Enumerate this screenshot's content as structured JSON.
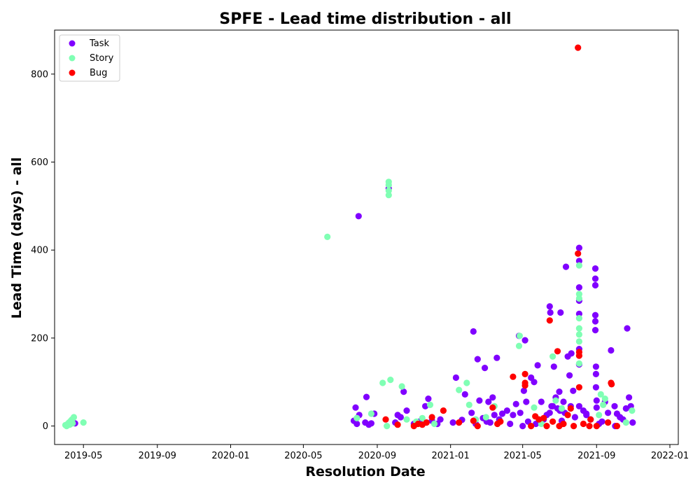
{
  "chart_data": {
    "type": "scatter",
    "title": "SPFE - Lead time distribution - all",
    "xlabel": "Resolution Date",
    "ylabel": "Lead Time (days) - all",
    "xlim": [
      "2019-03-14",
      "2022-01-15"
    ],
    "ylim": [
      -42,
      900
    ],
    "x_ticks": [
      "2019-05-01",
      "2019-09-01",
      "2020-01-01",
      "2020-05-01",
      "2020-09-01",
      "2021-01-01",
      "2021-05-01",
      "2021-09-01",
      "2022-01-01"
    ],
    "x_tick_labels": [
      "2019-05",
      "2019-09",
      "2020-01",
      "2020-05",
      "2020-09",
      "2021-01",
      "2021-05",
      "2021-09",
      "2022-01"
    ],
    "y_ticks": [
      0,
      200,
      400,
      600,
      800
    ],
    "y_tick_labels": [
      "0",
      "200",
      "400",
      "600",
      "800"
    ],
    "grid": false,
    "legend_position": "top-left",
    "series": [
      {
        "name": "Task",
        "color": "#8000ff",
        "points": [
          [
            "2019-04-17",
            6
          ],
          [
            "2020-07-24",
            12
          ],
          [
            "2020-07-27",
            42
          ],
          [
            "2020-07-29",
            5
          ],
          [
            "2020-08-02",
            25
          ],
          [
            "2020-08-12",
            8
          ],
          [
            "2020-08-14",
            66
          ],
          [
            "2020-08-18",
            3
          ],
          [
            "2020-08-22",
            6
          ],
          [
            "2020-08-27",
            28
          ],
          [
            "2020-09-20",
            540
          ],
          [
            "2020-08-01",
            477
          ],
          [
            "2020-10-01",
            8
          ],
          [
            "2020-10-05",
            25
          ],
          [
            "2020-10-10",
            20
          ],
          [
            "2020-10-15",
            78
          ],
          [
            "2020-10-20",
            35
          ],
          [
            "2020-11-01",
            5
          ],
          [
            "2020-11-10",
            10
          ],
          [
            "2020-11-20",
            45
          ],
          [
            "2020-11-25",
            62
          ],
          [
            "2020-12-01",
            12
          ],
          [
            "2020-12-10",
            5
          ],
          [
            "2020-12-15",
            15
          ],
          [
            "2021-01-05",
            8
          ],
          [
            "2021-01-10",
            110
          ],
          [
            "2021-01-20",
            14
          ],
          [
            "2021-01-25",
            72
          ],
          [
            "2021-02-05",
            30
          ],
          [
            "2021-02-08",
            215
          ],
          [
            "2021-02-12",
            5
          ],
          [
            "2021-02-15",
            152
          ],
          [
            "2021-02-18",
            58
          ],
          [
            "2021-02-24",
            18
          ],
          [
            "2021-02-27",
            132
          ],
          [
            "2021-03-02",
            10
          ],
          [
            "2021-03-05",
            55
          ],
          [
            "2021-03-08",
            8
          ],
          [
            "2021-03-12",
            65
          ],
          [
            "2021-03-15",
            25
          ],
          [
            "2021-03-19",
            155
          ],
          [
            "2021-03-23",
            15
          ],
          [
            "2021-03-28",
            28
          ],
          [
            "2021-04-05",
            35
          ],
          [
            "2021-04-10",
            5
          ],
          [
            "2021-04-15",
            25
          ],
          [
            "2021-04-20",
            50
          ],
          [
            "2021-04-25",
            205
          ],
          [
            "2021-04-27",
            30
          ],
          [
            "2021-05-01",
            0
          ],
          [
            "2021-05-03",
            80
          ],
          [
            "2021-05-05",
            195
          ],
          [
            "2021-05-07",
            55
          ],
          [
            "2021-05-10",
            10
          ],
          [
            "2021-05-15",
            110
          ],
          [
            "2021-05-20",
            100
          ],
          [
            "2021-05-23",
            5
          ],
          [
            "2021-05-26",
            138
          ],
          [
            "2021-06-01",
            55
          ],
          [
            "2021-06-05",
            15
          ],
          [
            "2021-06-10",
            25
          ],
          [
            "2021-06-15",
            272
          ],
          [
            "2021-06-16",
            258
          ],
          [
            "2021-06-18",
            45
          ],
          [
            "2021-06-22",
            135
          ],
          [
            "2021-06-25",
            65
          ],
          [
            "2021-06-28",
            40
          ],
          [
            "2021-07-01",
            78
          ],
          [
            "2021-07-03",
            258
          ],
          [
            "2021-07-05",
            12
          ],
          [
            "2021-07-08",
            55
          ],
          [
            "2021-07-12",
            362
          ],
          [
            "2021-07-15",
            158
          ],
          [
            "2021-07-18",
            115
          ],
          [
            "2021-07-21",
            165
          ],
          [
            "2021-07-24",
            80
          ],
          [
            "2021-07-27",
            20
          ],
          [
            "2021-08-03",
            405
          ],
          [
            "2021-08-03",
            375
          ],
          [
            "2021-08-03",
            315
          ],
          [
            "2021-08-03",
            285
          ],
          [
            "2021-08-03",
            255
          ],
          [
            "2021-08-03",
            175
          ],
          [
            "2021-08-03",
            140
          ],
          [
            "2021-08-03",
            45
          ],
          [
            "2021-08-10",
            35
          ],
          [
            "2021-08-15",
            28
          ],
          [
            "2021-08-22",
            15
          ],
          [
            "2021-08-30",
            358
          ],
          [
            "2021-08-30",
            335
          ],
          [
            "2021-08-30",
            320
          ],
          [
            "2021-08-30",
            252
          ],
          [
            "2021-08-30",
            238
          ],
          [
            "2021-08-30",
            218
          ],
          [
            "2021-08-31",
            135
          ],
          [
            "2021-08-31",
            118
          ],
          [
            "2021-08-31",
            88
          ],
          [
            "2021-09-01",
            58
          ],
          [
            "2021-09-01",
            42
          ],
          [
            "2021-09-10",
            10
          ],
          [
            "2021-09-15",
            55
          ],
          [
            "2021-09-20",
            30
          ],
          [
            "2021-09-25",
            172
          ],
          [
            "2021-10-01",
            45
          ],
          [
            "2021-10-05",
            28
          ],
          [
            "2021-10-10",
            20
          ],
          [
            "2021-10-15",
            15
          ],
          [
            "2021-10-20",
            40
          ],
          [
            "2021-10-22",
            222
          ],
          [
            "2021-10-25",
            65
          ],
          [
            "2021-10-28",
            45
          ],
          [
            "2021-10-31",
            8
          ],
          [
            "2021-06-15",
            30
          ],
          [
            "2021-06-20",
            45
          ],
          [
            "2021-07-02",
            35
          ],
          [
            "2021-07-10",
            30
          ],
          [
            "2021-07-20",
            45
          ],
          [
            "2021-08-15",
            25
          ],
          [
            "2021-09-05",
            5
          ],
          [
            "2021-10-02",
            0
          ]
        ]
      },
      {
        "name": "Story",
        "color": "#80ffb4",
        "points": [
          [
            "2019-04-01",
            2
          ],
          [
            "2019-04-03",
            0
          ],
          [
            "2019-04-05",
            5
          ],
          [
            "2019-04-07",
            8
          ],
          [
            "2019-04-08",
            3
          ],
          [
            "2019-04-10",
            12
          ],
          [
            "2019-04-12",
            15
          ],
          [
            "2019-04-13",
            6
          ],
          [
            "2019-04-15",
            20
          ],
          [
            "2019-05-01",
            8
          ],
          [
            "2020-06-10",
            430
          ],
          [
            "2020-07-29",
            18
          ],
          [
            "2020-08-22",
            28
          ],
          [
            "2020-09-10",
            98
          ],
          [
            "2020-09-17",
            0
          ],
          [
            "2020-09-20",
            555
          ],
          [
            "2020-09-20",
            548
          ],
          [
            "2020-09-20",
            535
          ],
          [
            "2020-09-20",
            525
          ],
          [
            "2020-09-23",
            105
          ],
          [
            "2020-10-12",
            90
          ],
          [
            "2020-10-20",
            15
          ],
          [
            "2020-11-05",
            10
          ],
          [
            "2020-11-15",
            18
          ],
          [
            "2020-11-28",
            48
          ],
          [
            "2020-12-05",
            5
          ],
          [
            "2021-01-15",
            82
          ],
          [
            "2021-01-28",
            98
          ],
          [
            "2021-02-01",
            48
          ],
          [
            "2021-02-12",
            15
          ],
          [
            "2021-03-01",
            20
          ],
          [
            "2021-03-15",
            45
          ],
          [
            "2021-04-25",
            182
          ],
          [
            "2021-04-26",
            205
          ],
          [
            "2021-05-20",
            42
          ],
          [
            "2021-06-01",
            5
          ],
          [
            "2021-06-20",
            158
          ],
          [
            "2021-06-25",
            58
          ],
          [
            "2021-07-05",
            40
          ],
          [
            "2021-08-03",
            365
          ],
          [
            "2021-08-03",
            300
          ],
          [
            "2021-08-03",
            290
          ],
          [
            "2021-08-03",
            245
          ],
          [
            "2021-08-03",
            222
          ],
          [
            "2021-08-03",
            208
          ],
          [
            "2021-08-03",
            192
          ],
          [
            "2021-08-03",
            142
          ],
          [
            "2021-09-05",
            25
          ],
          [
            "2021-09-08",
            72
          ],
          [
            "2021-09-12",
            48
          ],
          [
            "2021-09-15",
            62
          ],
          [
            "2021-10-20",
            8
          ],
          [
            "2021-10-30",
            35
          ]
        ]
      },
      {
        "name": "Bug",
        "color": "#ff0000",
        "points": [
          [
            "2020-09-15",
            15
          ],
          [
            "2020-10-05",
            3
          ],
          [
            "2020-11-01",
            0
          ],
          [
            "2020-11-08",
            5
          ],
          [
            "2020-11-15",
            3
          ],
          [
            "2020-11-22",
            8
          ],
          [
            "2020-12-01",
            20
          ],
          [
            "2020-12-20",
            35
          ],
          [
            "2021-01-15",
            8
          ],
          [
            "2021-02-08",
            12
          ],
          [
            "2021-02-15",
            0
          ],
          [
            "2021-03-12",
            42
          ],
          [
            "2021-03-20",
            5
          ],
          [
            "2021-03-25",
            10
          ],
          [
            "2021-04-15",
            112
          ],
          [
            "2021-05-05",
            118
          ],
          [
            "2021-05-05",
            98
          ],
          [
            "2021-05-05",
            92
          ],
          [
            "2021-05-15",
            0
          ],
          [
            "2021-05-22",
            22
          ],
          [
            "2021-05-28",
            15
          ],
          [
            "2021-06-05",
            18
          ],
          [
            "2021-06-15",
            240
          ],
          [
            "2021-06-28",
            170
          ],
          [
            "2021-07-01",
            0
          ],
          [
            "2021-07-08",
            5
          ],
          [
            "2021-07-15",
            25
          ],
          [
            "2021-07-20",
            40
          ],
          [
            "2021-07-25",
            0
          ],
          [
            "2021-08-01",
            860
          ],
          [
            "2021-08-01",
            392
          ],
          [
            "2021-08-03",
            168
          ],
          [
            "2021-08-03",
            160
          ],
          [
            "2021-08-03",
            88
          ],
          [
            "2021-08-10",
            5
          ],
          [
            "2021-08-22",
            15
          ],
          [
            "2021-09-01",
            0
          ],
          [
            "2021-09-20",
            8
          ],
          [
            "2021-09-25",
            98
          ],
          [
            "2021-09-26",
            95
          ],
          [
            "2021-10-05",
            0
          ],
          [
            "2021-06-10",
            0
          ],
          [
            "2021-06-20",
            10
          ],
          [
            "2021-08-20",
            0
          ]
        ]
      }
    ]
  }
}
